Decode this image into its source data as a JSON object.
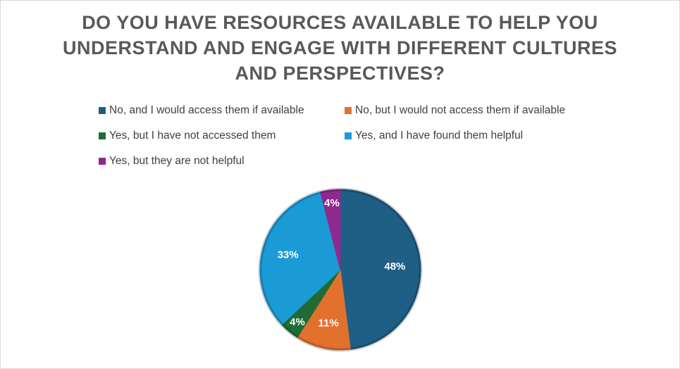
{
  "chart_data": {
    "type": "pie",
    "title_lines": [
      "DO YOU HAVE RESOURCES AVAILABLE TO HELP YOU",
      "UNDERSTAND AND ENGAGE WITH DIFFERENT CULTURES",
      "AND PERSPECTIVES?"
    ],
    "legend_position": "top",
    "slices": [
      {
        "label": "No, and I would access them if available",
        "value": 48,
        "display": "48%",
        "color": "#1f5f86"
      },
      {
        "label": "No, but I would not access them if available",
        "value": 11,
        "display": "11%",
        "color": "#e2712e"
      },
      {
        "label": "Yes, but I have not accessed them",
        "value": 4,
        "display": "4%",
        "color": "#1f6b33"
      },
      {
        "label": "Yes, and I have found them helpful",
        "value": 33,
        "display": "33%",
        "color": "#1a9bd6"
      },
      {
        "label": "Yes, but they are not helpful",
        "value": 4,
        "display": "4%",
        "color": "#8e2a8f"
      }
    ]
  }
}
